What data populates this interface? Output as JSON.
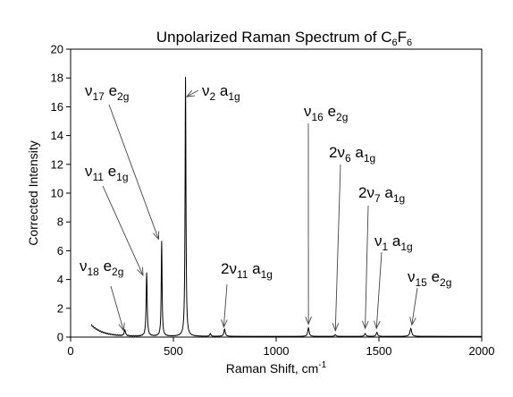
{
  "chart_data": {
    "type": "line",
    "title": {
      "text": "Unpolarized Raman Spectrum of C",
      "sub1": "6",
      "mid": "F",
      "sub2": "6"
    },
    "xlabel": {
      "text": "Raman Shift, cm",
      "sup": "-1"
    },
    "ylabel": "Corrected Intensity",
    "xlim": [
      0,
      2000
    ],
    "ylim": [
      0,
      20
    ],
    "x_ticks": [
      0,
      500,
      1000,
      1500,
      2000
    ],
    "y_ticks": [
      0,
      2,
      4,
      6,
      8,
      10,
      12,
      14,
      16,
      18,
      20
    ],
    "grid": false,
    "line_color": "#000000",
    "baseline": {
      "x_start": 100,
      "y_start": 0.85,
      "decay_to": 0.05
    },
    "peaks": [
      {
        "x": 264,
        "height": 0.4,
        "width": 4
      },
      {
        "x": 370,
        "height": 4.4,
        "width": 3
      },
      {
        "x": 443,
        "height": 6.6,
        "width": 2.5
      },
      {
        "x": 559,
        "height": 18.0,
        "width": 2.5
      },
      {
        "x": 680,
        "height": 0.2,
        "width": 3
      },
      {
        "x": 749,
        "height": 0.5,
        "width": 4
      },
      {
        "x": 1157,
        "height": 0.6,
        "width": 4
      },
      {
        "x": 1288,
        "height": 0.12,
        "width": 4
      },
      {
        "x": 1433,
        "height": 0.2,
        "width": 4
      },
      {
        "x": 1490,
        "height": 0.28,
        "width": 4
      },
      {
        "x": 1655,
        "height": 0.55,
        "width": 5
      }
    ],
    "annotations": [
      {
        "name": "nu18-e2g",
        "sym": "ν",
        "n": "18",
        "term": " e",
        "sub": "2g",
        "arrow_to": [
          258,
          0.45
        ]
      },
      {
        "name": "nu11-e1g",
        "sym": "ν",
        "n": "11",
        "term": " e",
        "sub": "1g",
        "arrow_to": [
          352,
          4.3
        ]
      },
      {
        "name": "nu17-e2g",
        "sym": "ν",
        "n": "17",
        "term": " e",
        "sub": "2g",
        "arrow_to": [
          428,
          6.8
        ]
      },
      {
        "name": "nu2-a1g",
        "sym": "ν",
        "n": "2",
        "term": " a",
        "sub": "1g",
        "arrow_to": [
          565,
          16.7
        ]
      },
      {
        "name": "2nu11-a1g",
        "sym": "2ν",
        "n": "11",
        "term": " a",
        "sub": "1g",
        "arrow_to": [
          745,
          0.7
        ]
      },
      {
        "name": "nu16-e2g",
        "sym": "ν",
        "n": "16",
        "term": " e",
        "sub": "2g",
        "arrow_to": [
          1157,
          0.9
        ]
      },
      {
        "name": "2nu6-a1g",
        "sym": "2ν",
        "n": "6",
        "term": " a",
        "sub": "1g",
        "arrow_to": [
          1288,
          0.45
        ]
      },
      {
        "name": "2nu7-a1g",
        "sym": "2ν",
        "n": "7",
        "term": " a",
        "sub": "1g",
        "arrow_to": [
          1433,
          0.6
        ]
      },
      {
        "name": "nu1-a1g",
        "sym": "ν",
        "n": "1",
        "term": " a",
        "sub": "1g",
        "arrow_to": [
          1488,
          0.6
        ]
      },
      {
        "name": "nu15-e2g",
        "sym": "ν",
        "n": "15",
        "term": " e",
        "sub": "2g",
        "arrow_to": [
          1660,
          0.85
        ]
      }
    ]
  }
}
